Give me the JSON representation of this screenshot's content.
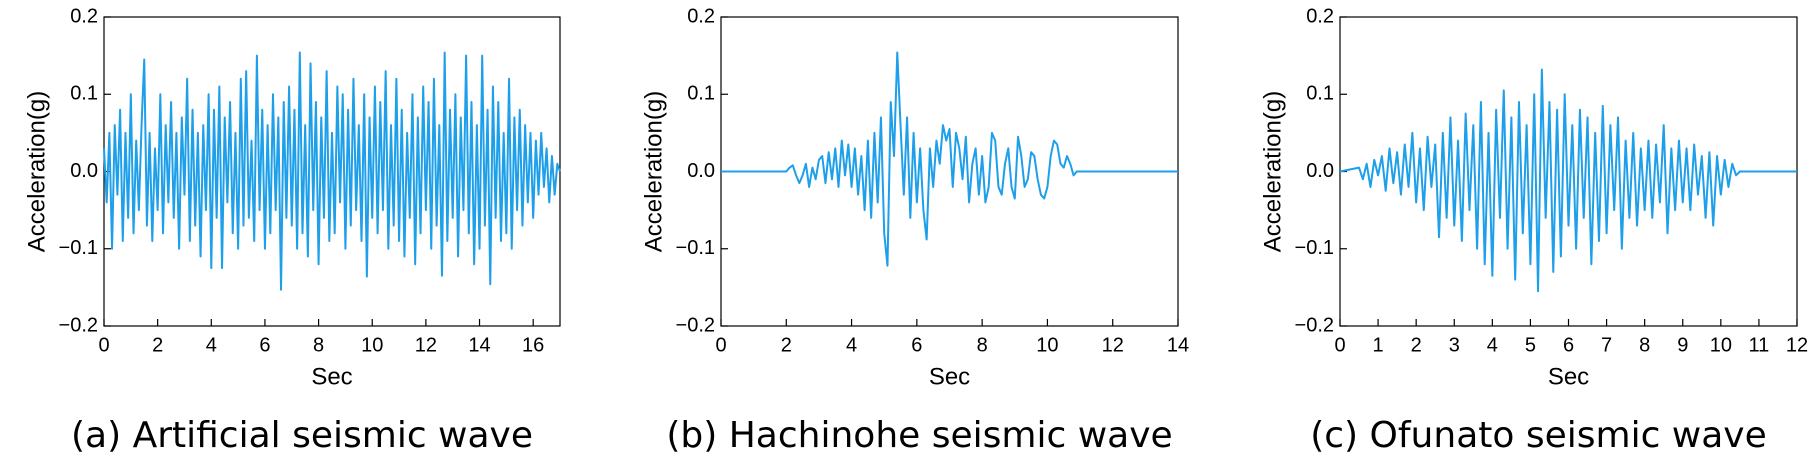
{
  "chart_data": [
    {
      "type": "line",
      "caption": "(a) Artificial seismic wave",
      "xlabel": "Sec",
      "ylabel": "Acceleration(g)",
      "xlim": [
        0,
        17
      ],
      "xticks": [
        0,
        2,
        4,
        6,
        8,
        10,
        12,
        14,
        16
      ],
      "ylim": [
        -0.2,
        0.2
      ],
      "yticks": [
        {
          "value": -0.2,
          "label": "−0.2"
        },
        {
          "value": -0.1,
          "label": "−0.1"
        },
        {
          "value": 0,
          "label": "0.0"
        },
        0.1,
        0.2
      ],
      "grid": false,
      "color": "#1e9fea",
      "x": [
        0,
        0.1,
        0.2,
        0.3,
        0.4,
        0.5,
        0.6,
        0.7,
        0.8,
        0.9,
        1,
        1.1,
        1.2,
        1.3,
        1.4,
        1.5,
        1.6,
        1.7,
        1.8,
        1.9,
        2,
        2.1,
        2.2,
        2.3,
        2.4,
        2.5,
        2.6,
        2.7,
        2.8,
        2.9,
        3,
        3.1,
        3.2,
        3.3,
        3.4,
        3.5,
        3.6,
        3.7,
        3.8,
        3.9,
        4,
        4.1,
        4.2,
        4.3,
        4.4,
        4.5,
        4.6,
        4.7,
        4.8,
        4.9,
        5,
        5.1,
        5.2,
        5.3,
        5.4,
        5.5,
        5.6,
        5.7,
        5.8,
        5.9,
        6,
        6.1,
        6.2,
        6.3,
        6.4,
        6.5,
        6.6,
        6.7,
        6.8,
        6.9,
        7,
        7.1,
        7.2,
        7.3,
        7.4,
        7.5,
        7.6,
        7.7,
        7.8,
        7.9,
        8,
        8.1,
        8.2,
        8.3,
        8.4,
        8.5,
        8.6,
        8.7,
        8.8,
        8.9,
        9,
        9.1,
        9.2,
        9.3,
        9.4,
        9.5,
        9.6,
        9.7,
        9.8,
        9.9,
        10,
        10.1,
        10.2,
        10.3,
        10.4,
        10.5,
        10.6,
        10.7,
        10.8,
        10.9,
        11,
        11.1,
        11.2,
        11.3,
        11.4,
        11.5,
        11.6,
        11.7,
        11.8,
        11.9,
        12,
        12.1,
        12.2,
        12.3,
        12.4,
        12.5,
        12.6,
        12.7,
        12.8,
        12.9,
        13,
        13.1,
        13.2,
        13.3,
        13.4,
        13.5,
        13.6,
        13.7,
        13.8,
        13.9,
        14,
        14.1,
        14.2,
        14.3,
        14.4,
        14.5,
        14.6,
        14.7,
        14.8,
        14.9,
        15,
        15.1,
        15.2,
        15.3,
        15.4,
        15.5,
        15.6,
        15.7,
        15.8,
        15.9,
        16,
        16.1,
        16.2,
        16.3,
        16.4,
        16.5,
        16.6,
        16.7,
        16.8,
        16.9,
        17
      ],
      "values": [
        0.03,
        -0.04,
        0.05,
        -0.1,
        0.06,
        -0.03,
        0.08,
        -0.09,
        0.05,
        -0.06,
        0.1,
        -0.08,
        0.04,
        -0.05,
        0.06,
        0.145,
        -0.07,
        0.05,
        -0.09,
        0.03,
        -0.05,
        0.1,
        -0.08,
        0.06,
        -0.04,
        0.09,
        -0.06,
        0.05,
        -0.1,
        0.07,
        -0.03,
        0.12,
        -0.09,
        0.08,
        -0.07,
        0.05,
        -0.11,
        0.06,
        -0.05,
        0.1,
        -0.125,
        0.08,
        -0.06,
        0.11,
        -0.125,
        0.07,
        -0.04,
        0.09,
        -0.08,
        0.05,
        -0.1,
        0.12,
        -0.07,
        0.13,
        -0.06,
        0.04,
        -0.09,
        0.15,
        -0.05,
        0.08,
        -0.1,
        0.06,
        -0.08,
        0.1,
        -0.05,
        0.07,
        -0.153,
        0.09,
        -0.06,
        0.11,
        -0.07,
        0.08,
        -0.1,
        0.154,
        -0.08,
        0.06,
        -0.11,
        0.14,
        -0.05,
        0.09,
        -0.12,
        0.07,
        -0.06,
        0.13,
        -0.09,
        0.05,
        -0.08,
        0.11,
        -0.04,
        0.1,
        -0.1,
        0.08,
        -0.07,
        0.12,
        -0.05,
        0.06,
        -0.09,
        0.1,
        -0.136,
        0.07,
        -0.06,
        0.11,
        -0.08,
        0.09,
        -0.05,
        0.13,
        -0.1,
        0.06,
        -0.07,
        0.12,
        -0.09,
        0.08,
        -0.11,
        0.05,
        -0.06,
        0.1,
        -0.12,
        0.07,
        -0.08,
        0.11,
        -0.05,
        0.09,
        -0.1,
        0.12,
        -0.07,
        0.06,
        -0.135,
        0.154,
        -0.09,
        0.08,
        -0.06,
        0.1,
        -0.11,
        0.07,
        -0.05,
        0.15,
        -0.08,
        0.09,
        -0.12,
        0.06,
        -0.1,
        0.15,
        -0.07,
        0.08,
        -0.146,
        0.11,
        -0.06,
        0.09,
        -0.09,
        0.05,
        -0.08,
        0.12,
        -0.1,
        0.07,
        -0.05,
        0.08,
        -0.07,
        0.06,
        -0.04,
        0.05,
        -0.06,
        0.04,
        -0.03,
        0.05,
        -0.02,
        0.03,
        -0.04,
        0.02,
        -0.03,
        0.01,
        0
      ]
    },
    {
      "type": "line",
      "caption": "(b) Hachinohe seismic wave",
      "xlabel": "Sec",
      "ylabel": "Acceleration(g)",
      "xlim": [
        0,
        14
      ],
      "xticks": [
        0,
        2,
        4,
        6,
        8,
        10,
        12,
        14
      ],
      "ylim": [
        -0.2,
        0.2
      ],
      "yticks": [
        {
          "value": -0.2,
          "label": "−0.2"
        },
        {
          "value": -0.1,
          "label": "−0.1"
        },
        {
          "value": 0,
          "label": "0.0"
        },
        0.1,
        0.2
      ],
      "grid": false,
      "color": "#1e9fea",
      "x": [
        0,
        2,
        2.1,
        2.2,
        2.3,
        2.4,
        2.5,
        2.6,
        2.7,
        2.8,
        2.9,
        3,
        3.1,
        3.2,
        3.3,
        3.4,
        3.5,
        3.6,
        3.7,
        3.8,
        3.9,
        4,
        4.1,
        4.2,
        4.3,
        4.4,
        4.5,
        4.6,
        4.7,
        4.8,
        4.9,
        5,
        5.1,
        5.2,
        5.3,
        5.4,
        5.5,
        5.6,
        5.7,
        5.8,
        5.9,
        6,
        6.1,
        6.2,
        6.3,
        6.4,
        6.5,
        6.6,
        6.7,
        6.8,
        6.9,
        7,
        7.1,
        7.2,
        7.3,
        7.4,
        7.5,
        7.6,
        7.7,
        7.8,
        7.9,
        8,
        8.1,
        8.2,
        8.3,
        8.4,
        8.5,
        8.6,
        8.7,
        8.8,
        8.9,
        9,
        9.1,
        9.2,
        9.3,
        9.4,
        9.5,
        9.6,
        9.7,
        9.8,
        9.9,
        10,
        10.1,
        10.2,
        10.3,
        10.4,
        10.5,
        10.6,
        10.7,
        10.8,
        10.9,
        11,
        14
      ],
      "values": [
        0,
        0,
        0.005,
        0.008,
        -0.005,
        -0.015,
        -0.005,
        0.01,
        -0.02,
        0.005,
        -0.01,
        0.015,
        0.02,
        -0.015,
        0.025,
        -0.01,
        0.03,
        -0.02,
        0.04,
        -0.005,
        0.035,
        -0.02,
        0.03,
        -0.03,
        0.02,
        -0.05,
        0.04,
        -0.06,
        0.05,
        -0.04,
        0.07,
        -0.08,
        -0.122,
        0.09,
        0.02,
        0.154,
        0.06,
        -0.03,
        0.07,
        -0.06,
        0.05,
        -0.04,
        0.03,
        -0.05,
        -0.088,
        0.03,
        -0.02,
        0.04,
        0.01,
        0.06,
        0.04,
        0.055,
        -0.02,
        0.05,
        0.03,
        -0.01,
        0.045,
        -0.04,
        0.01,
        0.03,
        -0.03,
        0.02,
        -0.04,
        -0.02,
        0.05,
        0.04,
        -0.02,
        -0.03,
        0.01,
        0.03,
        -0.02,
        -0.035,
        0.045,
        0.02,
        -0.02,
        -0.01,
        0.025,
        0.02,
        -0.01,
        -0.03,
        -0.035,
        -0.02,
        0.02,
        0.04,
        0.035,
        0.01,
        0.005,
        0.02,
        0.01,
        -0.005,
        0,
        0,
        0
      ]
    },
    {
      "type": "line",
      "caption": "(c) Ofunato seismic wave",
      "xlabel": "Sec",
      "ylabel": "Acceleration(g)",
      "xlim": [
        0,
        12
      ],
      "xticks": [
        0,
        1,
        2,
        3,
        4,
        5,
        6,
        7,
        8,
        9,
        10,
        11,
        12
      ],
      "ylim": [
        -0.2,
        0.2
      ],
      "yticks": [
        {
          "value": -0.2,
          "label": "−0.2"
        },
        {
          "value": -0.1,
          "label": "−0.1"
        },
        {
          "value": 0,
          "label": "0.0"
        },
        0.1,
        0.2
      ],
      "grid": false,
      "color": "#1e9fea",
      "x": [
        0,
        0.5,
        0.6,
        0.7,
        0.8,
        0.9,
        1,
        1.1,
        1.2,
        1.3,
        1.4,
        1.5,
        1.6,
        1.7,
        1.8,
        1.9,
        2,
        2.1,
        2.2,
        2.3,
        2.4,
        2.5,
        2.6,
        2.7,
        2.8,
        2.9,
        3,
        3.1,
        3.2,
        3.3,
        3.4,
        3.5,
        3.6,
        3.7,
        3.8,
        3.9,
        4,
        4.1,
        4.2,
        4.3,
        4.4,
        4.5,
        4.6,
        4.7,
        4.8,
        4.9,
        5,
        5.1,
        5.2,
        5.3,
        5.4,
        5.5,
        5.6,
        5.7,
        5.8,
        5.9,
        6,
        6.1,
        6.2,
        6.3,
        6.4,
        6.5,
        6.6,
        6.7,
        6.8,
        6.9,
        7,
        7.1,
        7.2,
        7.3,
        7.4,
        7.5,
        7.6,
        7.7,
        7.8,
        7.9,
        8,
        8.1,
        8.2,
        8.3,
        8.4,
        8.5,
        8.6,
        8.7,
        8.8,
        8.9,
        9,
        9.1,
        9.2,
        9.3,
        9.4,
        9.5,
        9.6,
        9.7,
        9.8,
        9.9,
        10,
        10.1,
        10.2,
        10.3,
        10.4,
        10.5,
        12
      ],
      "values": [
        0,
        0.005,
        -0.01,
        0.01,
        -0.02,
        0.015,
        -0.005,
        0.02,
        -0.025,
        0.03,
        -0.015,
        0.025,
        -0.03,
        0.035,
        -0.02,
        0.05,
        -0.04,
        0.03,
        -0.05,
        0.045,
        -0.02,
        0.035,
        -0.085,
        0.05,
        -0.06,
        0.07,
        -0.07,
        0.04,
        -0.09,
        0.075,
        -0.05,
        0.06,
        -0.1,
        0.09,
        -0.12,
        0.05,
        -0.135,
        0.08,
        -0.06,
        0.105,
        -0.1,
        0.07,
        -0.14,
        0.09,
        -0.08,
        0.06,
        -0.12,
        0.1,
        -0.155,
        0.132,
        -0.06,
        0.09,
        -0.13,
        0.08,
        -0.11,
        0.1,
        -0.07,
        0.06,
        -0.1,
        0.08,
        -0.06,
        0.07,
        -0.12,
        0.05,
        -0.09,
        0.085,
        -0.08,
        0.06,
        -0.05,
        0.07,
        -0.1,
        0.04,
        -0.06,
        0.05,
        -0.07,
        0.03,
        -0.05,
        0.04,
        -0.06,
        0.035,
        -0.04,
        0.06,
        -0.08,
        0.03,
        -0.05,
        0.04,
        -0.04,
        0.03,
        -0.05,
        0.035,
        -0.03,
        0.02,
        -0.06,
        0.025,
        -0.07,
        0.02,
        -0.03,
        0.015,
        -0.02,
        0.01,
        -0.005,
        0,
        0
      ]
    }
  ]
}
